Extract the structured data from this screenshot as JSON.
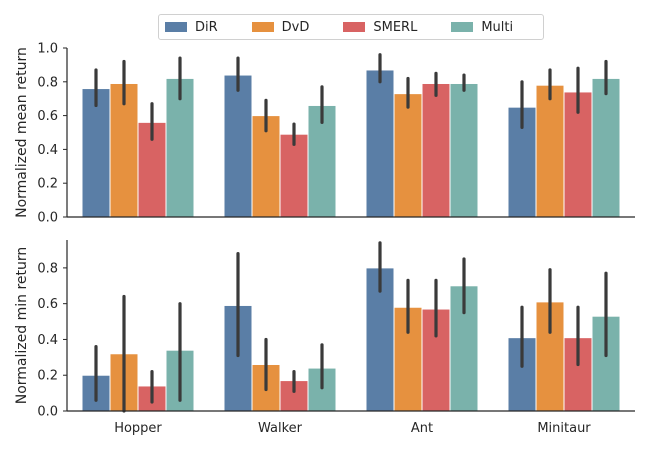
{
  "chart_data": {
    "type": "bar",
    "categories": [
      "Hopper",
      "Walker",
      "Ant",
      "Minitaur"
    ],
    "legend": {
      "placement": "top-center",
      "entries": [
        "DiR",
        "DvD",
        "SMERL",
        "Multi"
      ]
    },
    "colors": {
      "DiR": "#5a7ea6",
      "DvD": "#e6913f",
      "SMERL": "#d86363",
      "Multi": "#7ab2ab",
      "error_bar": "#3a3a3a",
      "axis": "#262626"
    },
    "panels": [
      {
        "ylabel": "Normalized mean return",
        "ylim": [
          0,
          1.0
        ],
        "yticks": [
          "0.0",
          "0.2",
          "0.4",
          "0.6",
          "0.8",
          "1.0"
        ],
        "ytick_values": [
          0,
          0.2,
          0.4,
          0.6,
          0.8,
          1.0
        ],
        "grid": false,
        "series": [
          {
            "name": "DiR",
            "values": [
              0.76,
              0.84,
              0.87,
              0.65
            ],
            "err_low": [
              0.66,
              0.75,
              0.8,
              0.53
            ],
            "err_high": [
              0.87,
              0.94,
              0.96,
              0.8
            ]
          },
          {
            "name": "DvD",
            "values": [
              0.79,
              0.6,
              0.73,
              0.78
            ],
            "err_low": [
              0.67,
              0.51,
              0.65,
              0.7
            ],
            "err_high": [
              0.92,
              0.69,
              0.82,
              0.87
            ]
          },
          {
            "name": "SMERL",
            "values": [
              0.56,
              0.49,
              0.79,
              0.74
            ],
            "err_low": [
              0.46,
              0.43,
              0.72,
              0.62
            ],
            "err_high": [
              0.67,
              0.55,
              0.85,
              0.88
            ]
          },
          {
            "name": "Multi",
            "values": [
              0.82,
              0.66,
              0.79,
              0.82
            ],
            "err_low": [
              0.7,
              0.56,
              0.75,
              0.73
            ],
            "err_high": [
              0.94,
              0.77,
              0.84,
              0.92
            ]
          }
        ]
      },
      {
        "ylabel": "Normalized min return",
        "ylim": [
          0,
          1.0
        ],
        "yticks": [
          "0.0",
          "0.2",
          "0.4",
          "0.6",
          "0.8"
        ],
        "ytick_values": [
          0,
          0.2,
          0.4,
          0.6,
          0.8
        ],
        "grid": false,
        "series": [
          {
            "name": "DiR",
            "values": [
              0.2,
              0.59,
              0.8,
              0.41
            ],
            "err_low": [
              0.06,
              0.31,
              0.67,
              0.25
            ],
            "err_high": [
              0.36,
              0.88,
              0.94,
              0.58
            ]
          },
          {
            "name": "DvD",
            "values": [
              0.32,
              0.26,
              0.58,
              0.61
            ],
            "err_low": [
              0.0,
              0.12,
              0.44,
              0.44
            ],
            "err_high": [
              0.64,
              0.4,
              0.73,
              0.79
            ]
          },
          {
            "name": "SMERL",
            "values": [
              0.14,
              0.17,
              0.57,
              0.41
            ],
            "err_low": [
              0.05,
              0.11,
              0.42,
              0.26
            ],
            "err_high": [
              0.22,
              0.22,
              0.73,
              0.58
            ]
          },
          {
            "name": "Multi",
            "values": [
              0.34,
              0.24,
              0.7,
              0.53
            ],
            "err_low": [
              0.06,
              0.13,
              0.55,
              0.31
            ],
            "err_high": [
              0.6,
              0.37,
              0.85,
              0.77
            ]
          }
        ]
      }
    ]
  }
}
